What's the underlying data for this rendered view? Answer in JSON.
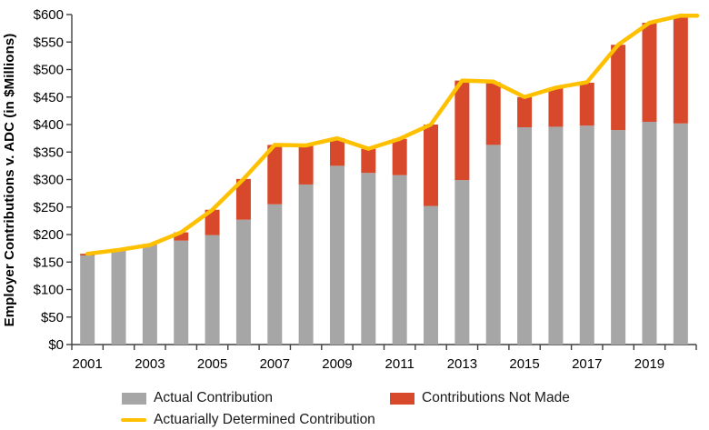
{
  "chart_data": {
    "type": "bar",
    "subtype": "stacked-bars-with-line-overlay",
    "title": "",
    "xlabel": "",
    "ylabel": "Employer Contributions v. ADC (in $Millions)",
    "categories": [
      2001,
      2002,
      2003,
      2004,
      2005,
      2006,
      2007,
      2008,
      2009,
      2010,
      2011,
      2012,
      2013,
      2014,
      2015,
      2016,
      2017,
      2018,
      2019,
      2020
    ],
    "x_tick_labels_shown": [
      "2001",
      "2003",
      "2005",
      "2007",
      "2009",
      "2011",
      "2013",
      "2015",
      "2017",
      "2019"
    ],
    "y_ticks": [
      0,
      50,
      100,
      150,
      200,
      250,
      300,
      350,
      400,
      450,
      500,
      550,
      600
    ],
    "y_tick_labels": [
      "$0",
      "$50",
      "$100",
      "$150",
      "$200",
      "$250",
      "$300",
      "$350",
      "$400",
      "$450",
      "$500",
      "$550",
      "$600"
    ],
    "ylim": [
      0,
      600
    ],
    "grid": false,
    "legend_position": "bottom",
    "series": [
      {
        "name": "Actual Contribution",
        "type": "bar",
        "stacked": true,
        "color": "#A6A6A6",
        "values": [
          162,
          171,
          180,
          189,
          199,
          227,
          255,
          291,
          325,
          312,
          308,
          252,
          299,
          363,
          395,
          396,
          398,
          390,
          405,
          402
        ]
      },
      {
        "name": "Contributions Not Made",
        "type": "bar",
        "stacked": true,
        "color": "#D8492B",
        "values": [
          3,
          1,
          1,
          15,
          46,
          74,
          108,
          70,
          50,
          44,
          66,
          148,
          181,
          114,
          55,
          71,
          78,
          155,
          180,
          196
        ]
      },
      {
        "name": "Actuarially Determined Contribution",
        "type": "line",
        "color": "#FFC000",
        "values": [
          165,
          172,
          181,
          204,
          245,
          301,
          363,
          362,
          375,
          356,
          374,
          400,
          480,
          478,
          450,
          467,
          477,
          545,
          585,
          598
        ]
      }
    ],
    "axis_color": "#404040",
    "text_color": "#000000",
    "background_color": "#FFFFFF"
  }
}
